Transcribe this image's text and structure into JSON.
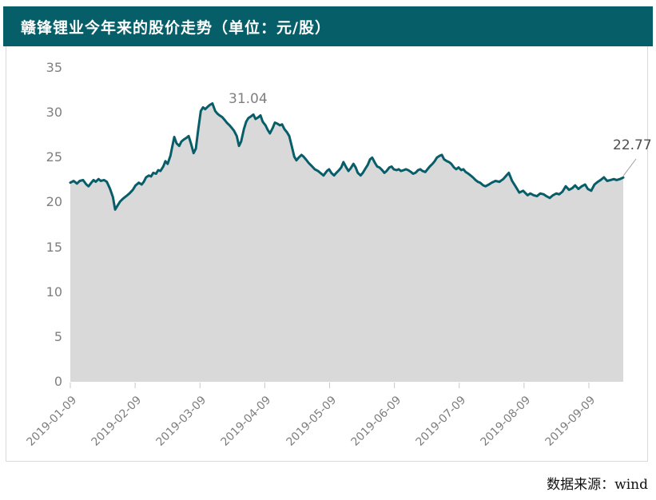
{
  "header": {
    "title": "赣锋锂业今年来的股价走势（单位：元/股）",
    "background_color": "#055e68",
    "text_color": "#ffffff"
  },
  "source_note": "数据来源：wind",
  "chart_data": {
    "type": "area",
    "title": "赣锋锂业今年来的股价走势",
    "unit": "元/股",
    "xlabel": "",
    "ylabel": "",
    "ylim": [
      0,
      35
    ],
    "y_ticks": [
      0,
      5,
      10,
      15,
      20,
      25,
      30,
      35
    ],
    "x_tick_labels": [
      "2019-01-09",
      "2019-02-09",
      "2019-03-09",
      "2019-04-09",
      "2019-05-09",
      "2019-06-09",
      "2019-07-09",
      "2019-08-09",
      "2019-09-09"
    ],
    "x_extends_past_last_tick": true,
    "grid": false,
    "legend": "none",
    "line_color": "#075e69",
    "fill_color": "#d9d9d9",
    "tick_color": "#c8c8c8",
    "annotations": [
      {
        "label": "31.04",
        "t": 0.257,
        "value": 31.04
      },
      {
        "label": "22.77",
        "t": 1.0,
        "value": 22.77
      }
    ],
    "points": [
      [
        0.0,
        22.2
      ],
      [
        0.006,
        22.4
      ],
      [
        0.012,
        22.1
      ],
      [
        0.017,
        22.4
      ],
      [
        0.023,
        22.5
      ],
      [
        0.029,
        22.0
      ],
      [
        0.033,
        21.8
      ],
      [
        0.038,
        22.2
      ],
      [
        0.042,
        22.5
      ],
      [
        0.046,
        22.3
      ],
      [
        0.051,
        22.6
      ],
      [
        0.055,
        22.4
      ],
      [
        0.061,
        22.5
      ],
      [
        0.066,
        22.3
      ],
      [
        0.072,
        21.5
      ],
      [
        0.077,
        20.6
      ],
      [
        0.081,
        19.2
      ],
      [
        0.085,
        19.6
      ],
      [
        0.09,
        20.1
      ],
      [
        0.095,
        20.4
      ],
      [
        0.101,
        20.7
      ],
      [
        0.107,
        21.0
      ],
      [
        0.113,
        21.4
      ],
      [
        0.118,
        21.9
      ],
      [
        0.124,
        22.2
      ],
      [
        0.129,
        22.0
      ],
      [
        0.133,
        22.3
      ],
      [
        0.137,
        22.8
      ],
      [
        0.142,
        23.0
      ],
      [
        0.146,
        22.9
      ],
      [
        0.15,
        23.3
      ],
      [
        0.155,
        23.2
      ],
      [
        0.159,
        23.6
      ],
      [
        0.163,
        23.5
      ],
      [
        0.168,
        24.0
      ],
      [
        0.172,
        24.6
      ],
      [
        0.176,
        24.3
      ],
      [
        0.181,
        25.2
      ],
      [
        0.185,
        26.4
      ],
      [
        0.188,
        27.3
      ],
      [
        0.192,
        26.6
      ],
      [
        0.197,
        26.3
      ],
      [
        0.201,
        26.8
      ],
      [
        0.205,
        27.0
      ],
      [
        0.21,
        27.2
      ],
      [
        0.214,
        27.4
      ],
      [
        0.218,
        26.6
      ],
      [
        0.223,
        25.5
      ],
      [
        0.227,
        26.0
      ],
      [
        0.231,
        28.0
      ],
      [
        0.236,
        30.2
      ],
      [
        0.24,
        30.6
      ],
      [
        0.244,
        30.4
      ],
      [
        0.249,
        30.7
      ],
      [
        0.253,
        30.9
      ],
      [
        0.257,
        31.04
      ],
      [
        0.262,
        30.2
      ],
      [
        0.266,
        29.9
      ],
      [
        0.27,
        29.7
      ],
      [
        0.275,
        29.5
      ],
      [
        0.279,
        29.2
      ],
      [
        0.283,
        28.9
      ],
      [
        0.288,
        28.6
      ],
      [
        0.292,
        28.3
      ],
      [
        0.296,
        28.0
      ],
      [
        0.301,
        27.4
      ],
      [
        0.305,
        26.3
      ],
      [
        0.309,
        26.8
      ],
      [
        0.314,
        28.2
      ],
      [
        0.318,
        29.0
      ],
      [
        0.322,
        29.4
      ],
      [
        0.327,
        29.6
      ],
      [
        0.331,
        29.8
      ],
      [
        0.335,
        29.3
      ],
      [
        0.34,
        29.5
      ],
      [
        0.344,
        29.7
      ],
      [
        0.348,
        29.0
      ],
      [
        0.353,
        28.6
      ],
      [
        0.357,
        28.1
      ],
      [
        0.361,
        27.7
      ],
      [
        0.366,
        28.3
      ],
      [
        0.37,
        28.9
      ],
      [
        0.374,
        28.8
      ],
      [
        0.379,
        28.6
      ],
      [
        0.383,
        28.7
      ],
      [
        0.387,
        28.2
      ],
      [
        0.392,
        27.8
      ],
      [
        0.396,
        27.4
      ],
      [
        0.4,
        26.4
      ],
      [
        0.405,
        25.1
      ],
      [
        0.409,
        24.7
      ],
      [
        0.413,
        25.0
      ],
      [
        0.418,
        25.3
      ],
      [
        0.422,
        25.1
      ],
      [
        0.426,
        24.8
      ],
      [
        0.431,
        24.4
      ],
      [
        0.436,
        24.1
      ],
      [
        0.442,
        23.7
      ],
      [
        0.448,
        23.5
      ],
      [
        0.454,
        23.2
      ],
      [
        0.458,
        23.0
      ],
      [
        0.464,
        23.5
      ],
      [
        0.468,
        23.7
      ],
      [
        0.472,
        23.3
      ],
      [
        0.477,
        23.0
      ],
      [
        0.481,
        23.3
      ],
      [
        0.486,
        23.6
      ],
      [
        0.49,
        23.9
      ],
      [
        0.494,
        24.5
      ],
      [
        0.499,
        23.9
      ],
      [
        0.503,
        23.5
      ],
      [
        0.507,
        23.8
      ],
      [
        0.512,
        24.3
      ],
      [
        0.516,
        23.9
      ],
      [
        0.52,
        23.3
      ],
      [
        0.525,
        23.0
      ],
      [
        0.529,
        23.3
      ],
      [
        0.533,
        23.7
      ],
      [
        0.538,
        24.2
      ],
      [
        0.542,
        24.8
      ],
      [
        0.546,
        25.0
      ],
      [
        0.551,
        24.4
      ],
      [
        0.555,
        24.0
      ],
      [
        0.559,
        23.9
      ],
      [
        0.564,
        23.6
      ],
      [
        0.568,
        23.3
      ],
      [
        0.572,
        23.5
      ],
      [
        0.577,
        23.9
      ],
      [
        0.581,
        24.0
      ],
      [
        0.585,
        23.7
      ],
      [
        0.59,
        23.6
      ],
      [
        0.594,
        23.7
      ],
      [
        0.598,
        23.5
      ],
      [
        0.603,
        23.6
      ],
      [
        0.607,
        23.7
      ],
      [
        0.611,
        23.6
      ],
      [
        0.616,
        23.4
      ],
      [
        0.62,
        23.2
      ],
      [
        0.624,
        23.3
      ],
      [
        0.629,
        23.6
      ],
      [
        0.633,
        23.7
      ],
      [
        0.637,
        23.5
      ],
      [
        0.642,
        23.4
      ],
      [
        0.646,
        23.7
      ],
      [
        0.65,
        24.0
      ],
      [
        0.655,
        24.3
      ],
      [
        0.659,
        24.6
      ],
      [
        0.663,
        25.0
      ],
      [
        0.668,
        25.2
      ],
      [
        0.672,
        25.3
      ],
      [
        0.676,
        24.8
      ],
      [
        0.681,
        24.6
      ],
      [
        0.685,
        24.5
      ],
      [
        0.689,
        24.3
      ],
      [
        0.694,
        23.9
      ],
      [
        0.698,
        23.7
      ],
      [
        0.702,
        23.9
      ],
      [
        0.707,
        23.6
      ],
      [
        0.711,
        23.7
      ],
      [
        0.715,
        23.4
      ],
      [
        0.72,
        23.2
      ],
      [
        0.724,
        23.0
      ],
      [
        0.728,
        22.8
      ],
      [
        0.733,
        22.5
      ],
      [
        0.737,
        22.3
      ],
      [
        0.741,
        22.2
      ],
      [
        0.747,
        21.9
      ],
      [
        0.751,
        21.8
      ],
      [
        0.757,
        22.0
      ],
      [
        0.762,
        22.2
      ],
      [
        0.769,
        22.4
      ],
      [
        0.776,
        22.3
      ],
      [
        0.783,
        22.6
      ],
      [
        0.79,
        23.1
      ],
      [
        0.793,
        23.3
      ],
      [
        0.799,
        22.4
      ],
      [
        0.805,
        21.8
      ],
      [
        0.812,
        21.1
      ],
      [
        0.819,
        21.3
      ],
      [
        0.827,
        20.8
      ],
      [
        0.832,
        21.0
      ],
      [
        0.838,
        20.8
      ],
      [
        0.844,
        20.7
      ],
      [
        0.85,
        21.0
      ],
      [
        0.856,
        20.9
      ],
      [
        0.861,
        20.7
      ],
      [
        0.867,
        20.5
      ],
      [
        0.873,
        20.8
      ],
      [
        0.879,
        21.0
      ],
      [
        0.884,
        20.9
      ],
      [
        0.89,
        21.2
      ],
      [
        0.896,
        21.8
      ],
      [
        0.902,
        21.4
      ],
      [
        0.908,
        21.6
      ],
      [
        0.913,
        21.9
      ],
      [
        0.919,
        21.5
      ],
      [
        0.925,
        21.8
      ],
      [
        0.931,
        22.0
      ],
      [
        0.936,
        21.5
      ],
      [
        0.942,
        21.3
      ],
      [
        0.948,
        22.0
      ],
      [
        0.954,
        22.3
      ],
      [
        0.959,
        22.5
      ],
      [
        0.965,
        22.8
      ],
      [
        0.971,
        22.4
      ],
      [
        0.977,
        22.5
      ],
      [
        0.983,
        22.6
      ],
      [
        0.988,
        22.5
      ],
      [
        0.994,
        22.6
      ],
      [
        1.0,
        22.77
      ]
    ]
  }
}
